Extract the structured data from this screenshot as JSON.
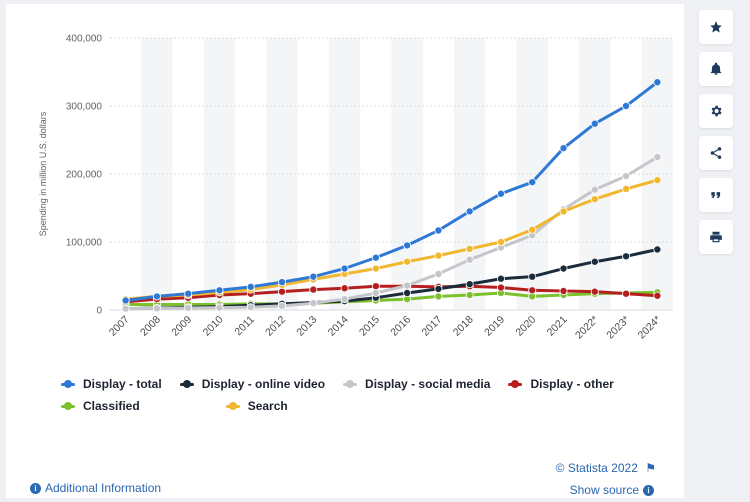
{
  "chart_data": {
    "type": "line",
    "title": "",
    "xlabel": "",
    "ylabel": "Spending in million U.S. dollars",
    "ylim": [
      0,
      400000
    ],
    "yticks": [
      "0",
      "100,000",
      "200,000",
      "300,000",
      "400,000"
    ],
    "yticks_values": [
      0,
      100000,
      200000,
      300000,
      400000
    ],
    "categories": [
      "2007",
      "2008",
      "2009",
      "2010",
      "2011",
      "2012",
      "2013",
      "2014",
      "2015",
      "2016",
      "2017",
      "2018",
      "2019",
      "2020",
      "2021",
      "2022*",
      "2023*",
      "2024*"
    ],
    "grid": true,
    "legend_position": "bottom",
    "series": [
      {
        "name": "Display - total",
        "color": "#2e78d6",
        "values": [
          14000,
          20000,
          24000,
          29000,
          34000,
          41000,
          49000,
          61000,
          77000,
          95000,
          117000,
          145000,
          171000,
          188000,
          238000,
          274000,
          300000,
          335000
        ]
      },
      {
        "name": "Display - online video",
        "color": "#1b2b3c",
        "values": [
          2000,
          3000,
          4000,
          5000,
          7000,
          9000,
          11000,
          13000,
          18000,
          25000,
          31000,
          38000,
          46000,
          49000,
          61000,
          71000,
          79000,
          89000
        ]
      },
      {
        "name": "Display - social media",
        "color": "#c4c6c9",
        "values": [
          2000,
          2500,
          3000,
          3500,
          4000,
          6000,
          10000,
          16000,
          25000,
          36000,
          53000,
          74000,
          92000,
          110000,
          148000,
          177000,
          197000,
          225000
        ]
      },
      {
        "name": "Display - other",
        "color": "#b51f1f",
        "values": [
          12000,
          16000,
          18000,
          22000,
          24000,
          27000,
          30000,
          32000,
          35000,
          35000,
          34000,
          35000,
          33000,
          29000,
          28000,
          27000,
          24000,
          21000
        ]
      },
      {
        "name": "Classified",
        "color": "#7dc02d",
        "values": [
          8000,
          8000,
          8000,
          8000,
          9000,
          9000,
          10000,
          12000,
          14000,
          16000,
          20000,
          22000,
          25000,
          20000,
          22000,
          24000,
          25000,
          26000
        ]
      },
      {
        "name": "Search",
        "color": "#f0b72f",
        "values": [
          16000,
          20000,
          22000,
          26000,
          30000,
          37000,
          45000,
          53000,
          61000,
          71000,
          80000,
          90000,
          100000,
          118000,
          145000,
          163000,
          178000,
          191000
        ]
      }
    ]
  },
  "footer": {
    "copyright": "© Statista 2022",
    "additional_info": "Additional Information",
    "show_source": "Show source"
  },
  "toolbar": {
    "icons": [
      "star-icon",
      "bell-icon",
      "gear-icon",
      "share-icon",
      "quote-icon",
      "print-icon"
    ]
  }
}
